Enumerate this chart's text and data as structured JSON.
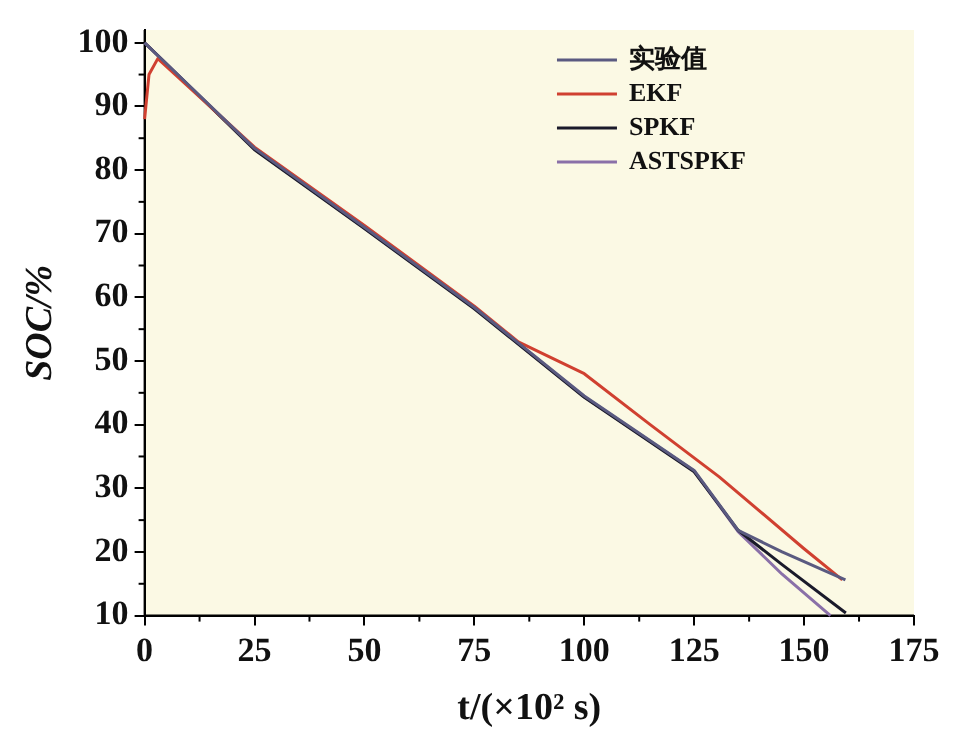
{
  "chart_data": {
    "type": "line",
    "xlabel": "t/(×10² s)",
    "ylabel": "SOC/%",
    "xlim": [
      0,
      175
    ],
    "xticks": [
      0,
      25,
      50,
      75,
      100,
      125,
      150,
      175
    ],
    "ylim": [
      10,
      102
    ],
    "yticks": [
      10,
      20,
      30,
      40,
      50,
      60,
      70,
      80,
      90,
      100
    ],
    "grid": false,
    "legend": "top right",
    "marker": "none",
    "line_style": "solid",
    "series": [
      {
        "name": "实验值",
        "color": "#5a5a80",
        "x": [
          0,
          3,
          25,
          50,
          75,
          100,
          125,
          135,
          145,
          159.4
        ],
        "values": [
          100,
          98,
          83.4,
          71,
          58.4,
          44.5,
          32.8,
          23.4,
          20,
          15.6
        ]
      },
      {
        "name": "EKF",
        "color": "#d04030",
        "x": [
          0,
          1,
          3,
          25,
          50,
          75,
          85,
          100,
          115,
          130.7,
          150,
          158.7
        ],
        "values": [
          88,
          95,
          97.5,
          83.6,
          71.3,
          58.6,
          53,
          48,
          40,
          31.8,
          20.5,
          15.6
        ]
      },
      {
        "name": "SPKF",
        "color": "#1a1a2a",
        "x": [
          0,
          3,
          25,
          50,
          75,
          100,
          125,
          135,
          145,
          159.5
        ],
        "values": [
          100,
          98,
          83.2,
          70.8,
          58.2,
          44.3,
          32.6,
          23.4,
          18,
          10.4
        ]
      },
      {
        "name": "ASTSPKF",
        "color": "#8a70a8",
        "x": [
          0,
          3,
          25,
          50,
          75,
          100,
          125,
          135,
          145,
          156
        ],
        "values": [
          100,
          98,
          83.3,
          70.9,
          58.3,
          44.4,
          32.7,
          23.2,
          16.5,
          10
        ]
      }
    ]
  }
}
